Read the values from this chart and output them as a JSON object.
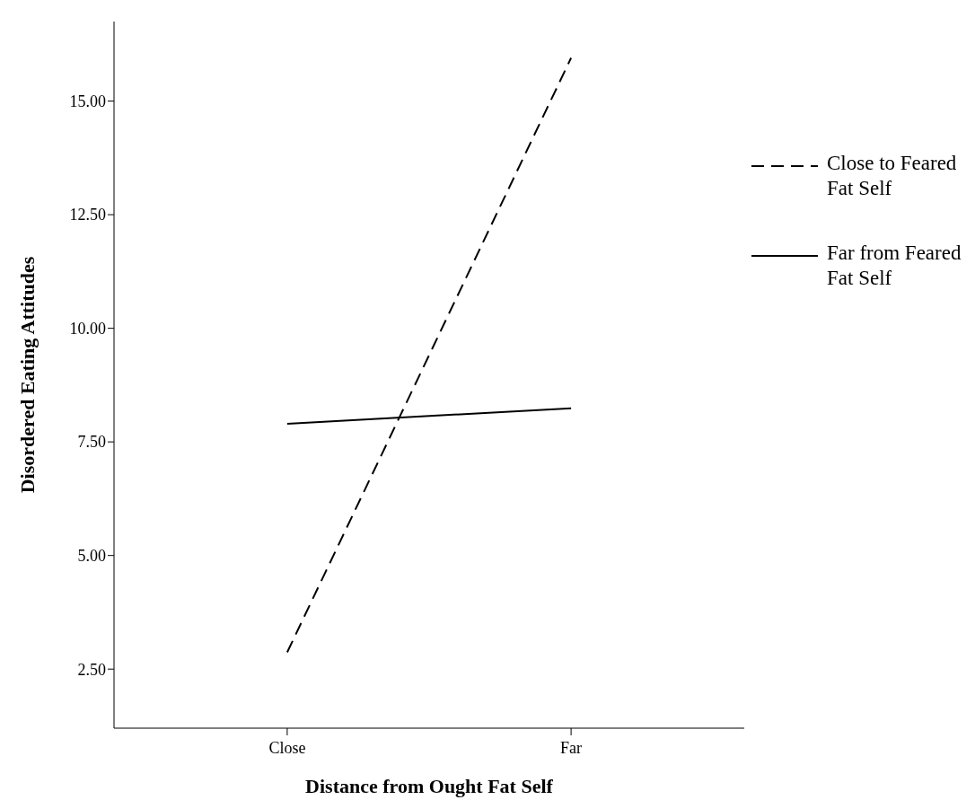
{
  "chart_data": {
    "type": "line",
    "xlabel": "Distance from Ought Fat Self",
    "ylabel": "Disordered Eating Attitudes",
    "categories": [
      "Close",
      "Far"
    ],
    "series": [
      {
        "name": "Close to Feared Fat Self",
        "color": "#000000",
        "line_style": "dashed",
        "values": [
          2.87,
          15.95
        ]
      },
      {
        "name": "Far from Feared Fat Self",
        "color": "#000000",
        "line_style": "solid",
        "values": [
          7.9,
          8.24
        ]
      }
    ],
    "ylim": [
      1.2,
      16.75
    ],
    "yticks": [
      {
        "value": 2.5,
        "label": "2.50"
      },
      {
        "value": 5,
        "label": "5.00"
      },
      {
        "value": 7.5,
        "label": "7.50"
      },
      {
        "value": 10,
        "label": "10.00"
      },
      {
        "value": 12.5,
        "label": "12.50"
      },
      {
        "value": 15,
        "label": "15.00"
      }
    ],
    "grid": false,
    "legend": "right",
    "marker": "none"
  }
}
